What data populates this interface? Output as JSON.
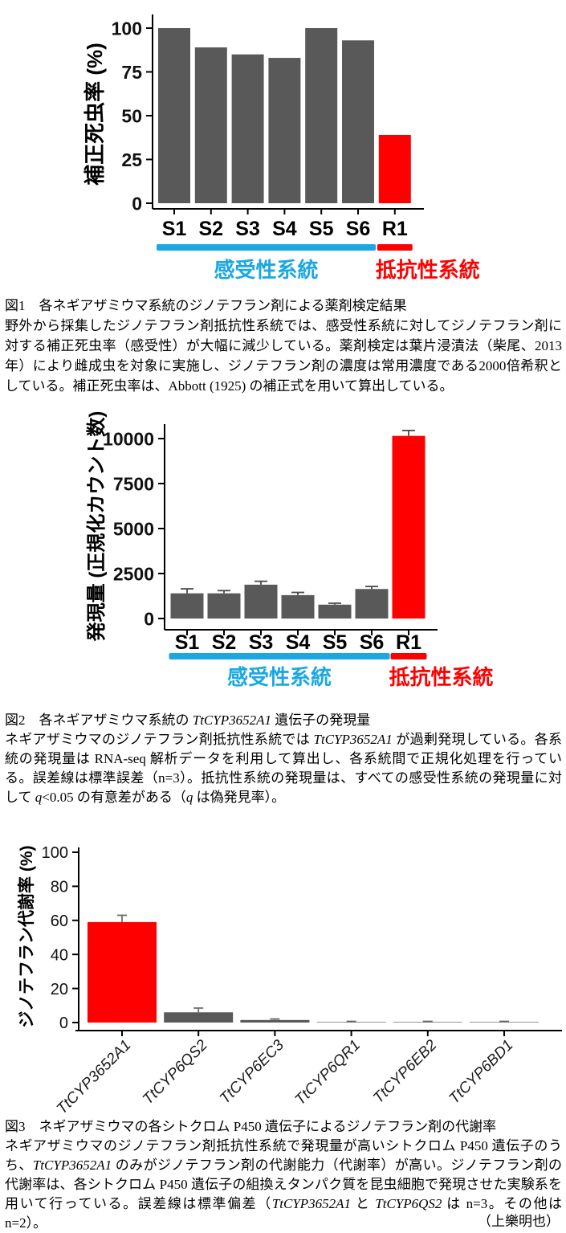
{
  "page": {
    "background": "#ffffff"
  },
  "colors": {
    "bar_gray": "#595959",
    "bar_red": "#ff0000",
    "group_blue": "#1ba7e2",
    "axis_black": "#000000"
  },
  "chart_data": [
    {
      "type": "bar",
      "ylabel": "補正死虫率 (%)",
      "categories": [
        "S1",
        "S2",
        "S3",
        "S4",
        "S5",
        "S6",
        "R1"
      ],
      "values": [
        100,
        89,
        85,
        83,
        100,
        93,
        39
      ],
      "bar_colors": [
        "#595959",
        "#595959",
        "#595959",
        "#595959",
        "#595959",
        "#595959",
        "#ff0000"
      ],
      "yticks": [
        0,
        25,
        50,
        75,
        100
      ],
      "ylim": [
        0,
        105
      ],
      "grid": false,
      "groups": [
        {
          "label": "感受性系統",
          "from": 0,
          "to": 5,
          "color": "#1ba7e2"
        },
        {
          "label": "抵抗性系統",
          "from": 6,
          "to": 6,
          "color": "#ff0000"
        }
      ]
    },
    {
      "type": "bar",
      "ylabel": "発現量 (正規化カウント数)",
      "categories": [
        "S1",
        "S2",
        "S3",
        "S4",
        "S5",
        "S6",
        "R1"
      ],
      "values": [
        1400,
        1400,
        1880,
        1300,
        770,
        1640,
        10150
      ],
      "errors": [
        250,
        150,
        190,
        150,
        80,
        140,
        300
      ],
      "error_color": "#4a4a4a",
      "bar_colors": [
        "#595959",
        "#595959",
        "#595959",
        "#595959",
        "#595959",
        "#595959",
        "#ff0000"
      ],
      "yticks": [
        0,
        2500,
        5000,
        7500,
        10000
      ],
      "ylim": [
        0,
        10800
      ],
      "grid": false,
      "groups": [
        {
          "label": "感受性系統",
          "from": 0,
          "to": 5,
          "color": "#1ba7e2"
        },
        {
          "label": "抵抗性系統",
          "from": 6,
          "to": 6,
          "color": "#ff0000"
        }
      ]
    },
    {
      "type": "bar",
      "ylabel": "ジノテフラン代謝率 (%)",
      "categories": [
        "TtCYP3652A1",
        "TtCYP6QS2",
        "TtCYP6EC3",
        "TtCYP6QR1",
        "TtCYP6EB2",
        "TtCYP6BD1"
      ],
      "values": [
        59,
        6,
        1.5,
        0.3,
        0.3,
        0.3
      ],
      "errors": [
        4,
        2.5,
        0.6,
        0.4,
        0.4,
        0.4
      ],
      "error_color": "#6e6e6e",
      "bar_colors": [
        "#ff0000",
        "#595959",
        "#595959",
        "#595959",
        "#595959",
        "#595959"
      ],
      "yticks": [
        0,
        20,
        40,
        60,
        80,
        100
      ],
      "ylim": [
        0,
        100
      ],
      "grid": false,
      "xlabel_style": "rotated-italic"
    }
  ],
  "figure1": {
    "title": "図1　各ネギアザミウマ系統のジノテフラン剤による薬剤検定結果",
    "body": "野外から採集したジノテフラン剤抵抗性系統では、感受性系統に対してジノテフラン剤に対する補正死虫率（感受性）が大幅に減少している。薬剤検定は葉片浸漬法（柴尾、2013年）により雌成虫を対象に実施し、ジノテフラン剤の濃度は常用濃度である2000倍希釈としている。補正死虫率は、Abbott (1925) の補正式を用いて算出している。"
  },
  "figure2": {
    "title_parts": [
      {
        "t": "図2　各ネギアザミウマ系統の "
      },
      {
        "t": "TtCYP3652A1",
        "italic": true
      },
      {
        "t": " 遺伝子の発現量"
      }
    ],
    "body_parts": [
      {
        "t": "ネギアザミウマのジノテフラン剤抵抗性系統では "
      },
      {
        "t": "TtCYP3652A1",
        "italic": true
      },
      {
        "t": " が過剰発現している。各系統の発現量は RNA-seq 解析データを利用して算出し、各系統間で正規化処理を行っている。誤差線は標準誤差（n=3）。抵抗性系統の発現量は、すべての感受性系統の発現量に対して "
      },
      {
        "t": "q",
        "italic": true
      },
      {
        "t": "<0.05 の有意差がある（"
      },
      {
        "t": "q",
        "italic": true
      },
      {
        "t": " は偽発見率）。"
      }
    ]
  },
  "figure3": {
    "title": "図3　ネギアザミウマの各シトクロム P450 遺伝子によるジノテフラン剤の代謝率",
    "body_parts": [
      {
        "t": "ネギアザミウマのジノテフラン剤抵抗性系統で発現量が高いシトクロム P450 遺伝子のうち、"
      },
      {
        "t": "TtCYP3652A1",
        "italic": true
      },
      {
        "t": " のみがジノテフラン剤の代謝能力（代謝率）が高い。ジノテフラン剤の代謝率は、各シトクロム P450 遺伝子の組換えタンパク質を昆虫細胞で発現させた実験系を用いて行っている。誤差線は標準偏差（"
      },
      {
        "t": "TtCYP3652A1",
        "italic": true
      },
      {
        "t": " と "
      },
      {
        "t": "TtCYP6QS2",
        "italic": true
      },
      {
        "t": " は n=3。その他は n=2）。"
      }
    ]
  },
  "footer": {
    "credit": "（上樂明也）"
  }
}
